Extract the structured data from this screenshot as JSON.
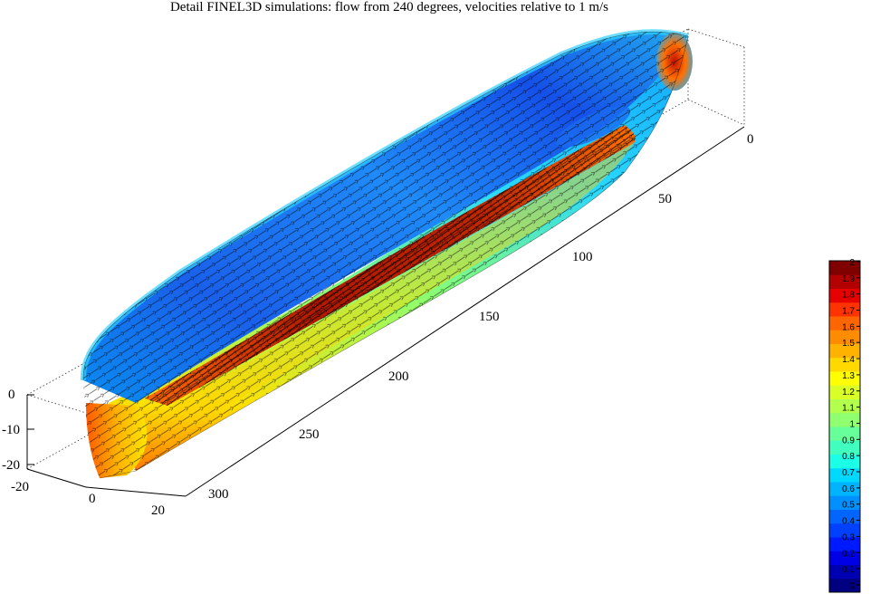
{
  "window": {
    "title": "Detail FINEL3D simulations: flow from 240 degrees, velocities relative to 1 m/s"
  },
  "chart_data": {
    "type": "3d-surface",
    "title": "Detail FINEL3D simulations: flow from 240 degrees, velocities relative to 1 m/s",
    "xlabel": "",
    "ylabel": "",
    "zlabel": "",
    "grid": false,
    "box": "dotted",
    "x_axis": {
      "range": [
        -20,
        20
      ],
      "ticks": [
        "-20",
        "0",
        "20"
      ]
    },
    "y_axis": {
      "range": [
        0,
        320
      ],
      "ticks": [
        "0",
        "50",
        "100",
        "150",
        "200",
        "250",
        "300"
      ]
    },
    "z_axis": {
      "range": [
        -22,
        0
      ],
      "ticks": [
        "0",
        "-10",
        "-20"
      ]
    },
    "colorbar": {
      "placement": "right",
      "range": [
        0,
        2.05
      ],
      "ticks": [
        "0",
        "0.1",
        "0.2",
        "0.3",
        "0.4",
        "0.5",
        "0.6",
        "0.7",
        "0.8",
        "0.9",
        "1",
        "1.1",
        "1.2",
        "1.3",
        "1.4",
        "1.5",
        "1.6",
        "1.7",
        "1.8",
        "1.9",
        "2"
      ],
      "colors": [
        "#000080",
        "#0000b3",
        "#0000e6",
        "#001aff",
        "#0040ff",
        "#0066ff",
        "#0090ff",
        "#00b3ff",
        "#00d9ff",
        "#1affe6",
        "#40ffbf",
        "#66ff99",
        "#90ff70",
        "#b3ff4d",
        "#d9ff26",
        "#ffff00",
        "#ffd900",
        "#ffb300",
        "#ff8c00",
        "#ff6600",
        "#ff3300",
        "#e60000",
        "#b30000",
        "#800000"
      ]
    },
    "surface": {
      "description_colors": {
        "keel_band": "#c02800",
        "side_high": "#ffe000",
        "stern_face": "#ff8000",
        "deck_low": "#1e6ef5",
        "bow_tip": "#e02000"
      }
    }
  }
}
